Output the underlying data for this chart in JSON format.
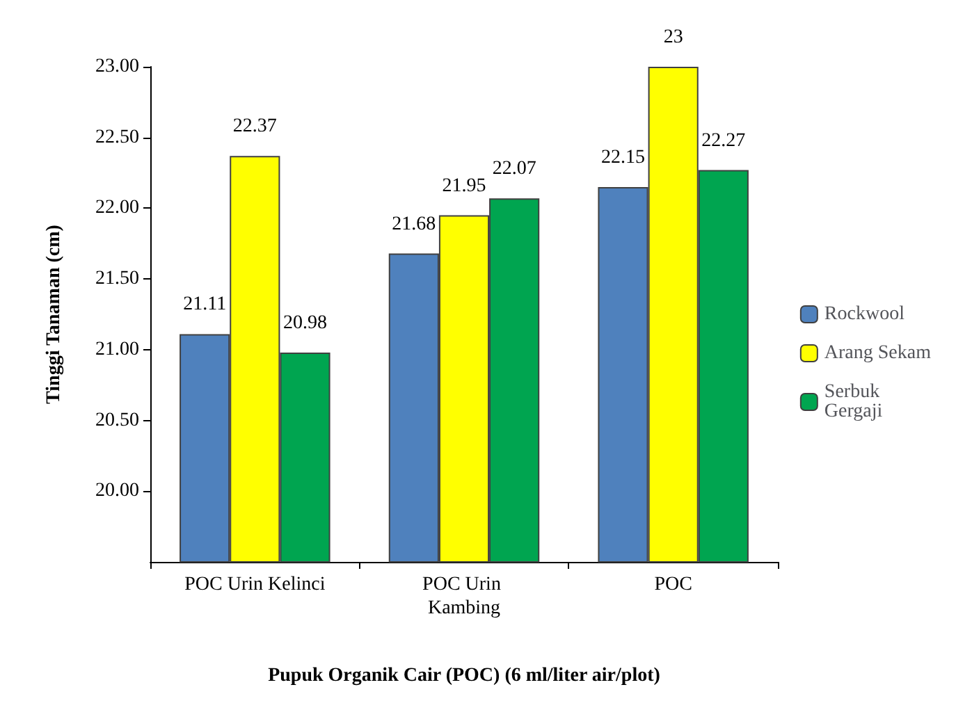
{
  "chart_data": {
    "type": "bar",
    "xlabel": "Pupuk Organik Cair (POC) (6 ml/liter air/plot)",
    "ylabel": "Tinggi Tanaman (cm)",
    "categories": [
      "POC Urin Kelinci",
      "POC Urin Kambing",
      "POC"
    ],
    "series": [
      {
        "name": "Rockwool",
        "color": "#4f81bd",
        "values": [
          21.11,
          21.68,
          22.15
        ]
      },
      {
        "name": "Arang Sekam",
        "color": "#ffff00",
        "values": [
          22.37,
          21.95,
          23
        ]
      },
      {
        "name": "Serbuk Gergaji",
        "color": "#00a550",
        "values": [
          20.98,
          22.07,
          22.27
        ]
      }
    ],
    "ylim": [
      19.5,
      23.0
    ],
    "yticks": [
      {
        "value": 20,
        "label": "20.00"
      },
      {
        "value": 20.5,
        "label": "20.50"
      },
      {
        "value": 21,
        "label": "21.00"
      },
      {
        "value": 21.5,
        "label": "21.50"
      },
      {
        "value": 22,
        "label": "22.00"
      },
      {
        "value": 22.5,
        "label": "22.50"
      },
      {
        "value": 23,
        "label": "23.00"
      }
    ],
    "data_labels": true,
    "grid": false,
    "legend": "right"
  }
}
